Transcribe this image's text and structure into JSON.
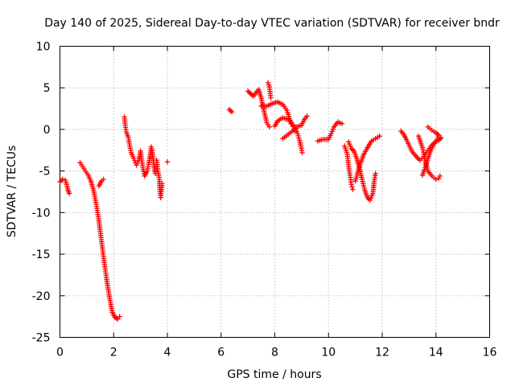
{
  "chart_data": {
    "type": "scatter",
    "title": "Day 140 of 2025, Sidereal Day-to-day VTEC variation (SDTVAR) for receiver bndr",
    "xlabel": "GPS time / hours",
    "ylabel": "SDTVAR / TECUs",
    "xlim": [
      0,
      16
    ],
    "ylim": [
      -25,
      10
    ],
    "xticks": [
      "0",
      "2",
      "4",
      "6",
      "8",
      "10",
      "12",
      "14",
      "16"
    ],
    "yticks": [
      "10",
      "5",
      "0",
      "-5",
      "-10",
      "-15",
      "-20",
      "-25"
    ],
    "grid": true,
    "marker": "+",
    "color": "#ff0000",
    "segments": [
      [
        [
          0.0,
          -6.3
        ],
        [
          0.1,
          -6.0
        ],
        [
          0.2,
          -6.1
        ],
        [
          0.25,
          -6.6
        ],
        [
          0.3,
          -7.3
        ],
        [
          0.35,
          -7.7
        ]
      ],
      [
        [
          0.75,
          -4.0
        ],
        [
          0.85,
          -4.5
        ],
        [
          0.95,
          -5.0
        ],
        [
          1.05,
          -5.5
        ],
        [
          1.15,
          -6.2
        ],
        [
          1.25,
          -7.3
        ],
        [
          1.35,
          -9.0
        ],
        [
          1.45,
          -11.0
        ],
        [
          1.55,
          -13.5
        ],
        [
          1.65,
          -16.0
        ],
        [
          1.75,
          -18.3
        ],
        [
          1.85,
          -20.3
        ],
        [
          1.95,
          -22.0
        ],
        [
          2.05,
          -22.6
        ],
        [
          2.15,
          -22.8
        ],
        [
          2.22,
          -22.5
        ]
      ],
      [
        [
          1.45,
          -6.8
        ],
        [
          1.55,
          -6.2
        ],
        [
          1.62,
          -6.0
        ]
      ],
      [
        [
          2.4,
          1.5
        ],
        [
          2.43,
          0.5
        ],
        [
          2.47,
          -0.3
        ],
        [
          2.55,
          -1.0
        ],
        [
          2.6,
          -2.0
        ],
        [
          2.65,
          -2.8
        ],
        [
          2.75,
          -3.5
        ],
        [
          2.85,
          -4.3
        ],
        [
          2.95,
          -3.5
        ],
        [
          3.0,
          -2.6
        ],
        [
          3.05,
          -3.8
        ],
        [
          3.1,
          -4.8
        ],
        [
          3.15,
          -5.6
        ],
        [
          3.25,
          -5.0
        ],
        [
          3.3,
          -4.2
        ],
        [
          3.35,
          -3.3
        ],
        [
          3.4,
          -2.1
        ],
        [
          3.45,
          -3.0
        ],
        [
          3.5,
          -4.4
        ],
        [
          3.55,
          -5.3
        ]
      ],
      [
        [
          3.6,
          -3.7
        ],
        [
          3.65,
          -5.0
        ],
        [
          3.7,
          -6.0
        ],
        [
          3.72,
          -7.2
        ],
        [
          3.75,
          -8.2
        ],
        [
          3.8,
          -6.5
        ]
      ],
      [
        [
          4.0,
          -3.9
        ]
      ],
      [
        [
          6.3,
          2.4
        ],
        [
          6.4,
          2.1
        ]
      ],
      [
        [
          7.0,
          4.6
        ],
        [
          7.2,
          4.0
        ],
        [
          7.4,
          4.8
        ],
        [
          7.5,
          3.7
        ],
        [
          7.6,
          2.2
        ],
        [
          7.7,
          0.8
        ],
        [
          7.8,
          0.3
        ]
      ],
      [
        [
          7.5,
          2.8
        ],
        [
          7.7,
          2.8
        ],
        [
          7.9,
          3.1
        ],
        [
          8.1,
          3.3
        ],
        [
          8.3,
          3.0
        ],
        [
          8.45,
          2.3
        ],
        [
          8.55,
          1.3
        ],
        [
          8.65,
          0.6
        ],
        [
          8.75,
          -0.2
        ]
      ],
      [
        [
          7.75,
          5.6
        ],
        [
          7.8,
          5.1
        ],
        [
          7.85,
          3.8
        ]
      ],
      [
        [
          8.0,
          0.4
        ],
        [
          8.1,
          1.0
        ],
        [
          8.3,
          1.4
        ],
        [
          8.5,
          1.2
        ],
        [
          8.6,
          0.7
        ],
        [
          8.75,
          0.3
        ],
        [
          8.85,
          -0.5
        ],
        [
          8.92,
          -1.3
        ],
        [
          8.97,
          -2.0
        ],
        [
          9.02,
          -2.8
        ]
      ],
      [
        [
          8.3,
          -1.1
        ],
        [
          8.5,
          -0.6
        ],
        [
          8.7,
          -0.1
        ],
        [
          8.8,
          0.3
        ],
        [
          9.0,
          0.5
        ],
        [
          9.1,
          1.2
        ],
        [
          9.2,
          1.6
        ]
      ],
      [
        [
          9.6,
          -1.4
        ],
        [
          9.8,
          -1.2
        ],
        [
          10.0,
          -1.2
        ],
        [
          10.1,
          -0.5
        ],
        [
          10.2,
          0.3
        ],
        [
          10.35,
          0.9
        ],
        [
          10.5,
          0.7
        ]
      ],
      [
        [
          10.6,
          -2.0
        ],
        [
          10.7,
          -3.0
        ],
        [
          10.75,
          -4.5
        ],
        [
          10.8,
          -5.5
        ],
        [
          10.85,
          -6.6
        ],
        [
          10.9,
          -7.2
        ]
      ],
      [
        [
          10.75,
          -1.5
        ],
        [
          10.85,
          -2.3
        ],
        [
          10.95,
          -2.6
        ],
        [
          11.05,
          -3.5
        ],
        [
          11.15,
          -4.6
        ],
        [
          11.25,
          -6.0
        ],
        [
          11.35,
          -7.3
        ],
        [
          11.45,
          -8.2
        ],
        [
          11.55,
          -8.5
        ],
        [
          11.65,
          -7.7
        ],
        [
          11.7,
          -6.3
        ],
        [
          11.75,
          -5.3
        ]
      ],
      [
        [
          11.0,
          -6.2
        ],
        [
          11.1,
          -5.0
        ],
        [
          11.2,
          -4.0
        ],
        [
          11.3,
          -3.1
        ],
        [
          11.45,
          -2.2
        ],
        [
          11.6,
          -1.4
        ],
        [
          11.75,
          -1.1
        ],
        [
          11.9,
          -0.8
        ]
      ],
      [
        [
          12.7,
          -0.2
        ],
        [
          12.8,
          -0.6
        ],
        [
          12.9,
          -1.2
        ],
        [
          13.0,
          -1.9
        ],
        [
          13.1,
          -2.6
        ],
        [
          13.25,
          -3.2
        ],
        [
          13.4,
          -3.7
        ],
        [
          13.55,
          -3.3
        ],
        [
          13.65,
          -2.8
        ],
        [
          13.75,
          -2.3
        ],
        [
          13.85,
          -1.9
        ],
        [
          13.95,
          -1.6
        ],
        [
          14.1,
          -1.3
        ],
        [
          14.2,
          -1.0
        ]
      ],
      [
        [
          13.35,
          -0.8
        ],
        [
          13.5,
          -2.2
        ],
        [
          13.6,
          -3.8
        ],
        [
          13.7,
          -5.0
        ],
        [
          13.85,
          -5.6
        ],
        [
          14.0,
          -6.0
        ],
        [
          14.1,
          -5.9
        ],
        [
          14.15,
          -5.6
        ]
      ],
      [
        [
          13.5,
          -5.5
        ],
        [
          13.6,
          -4.6
        ],
        [
          13.7,
          -3.5
        ],
        [
          13.8,
          -2.6
        ],
        [
          13.9,
          -1.9
        ],
        [
          14.0,
          -1.4
        ],
        [
          14.1,
          -0.9
        ]
      ],
      [
        [
          13.7,
          0.3
        ],
        [
          13.85,
          -0.1
        ],
        [
          14.0,
          -0.4
        ],
        [
          14.1,
          -0.7
        ]
      ]
    ]
  }
}
